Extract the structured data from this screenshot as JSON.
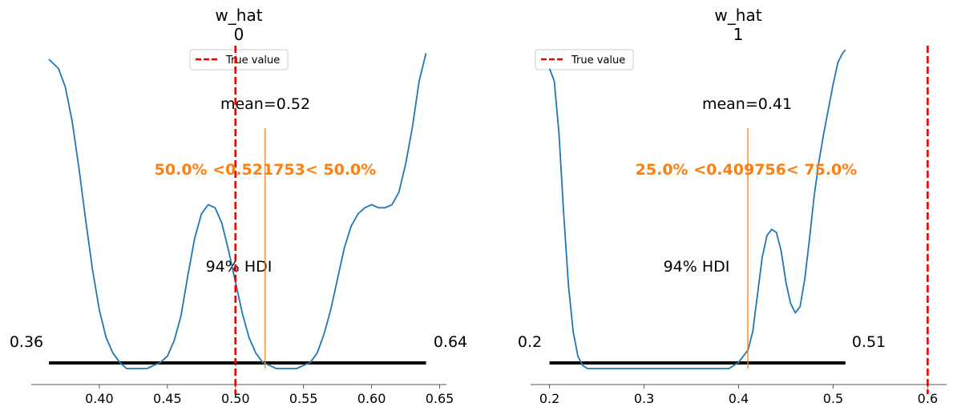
{
  "chart_data": [
    {
      "type": "density",
      "title_line1": "w_hat",
      "title_line2": "0",
      "xlim": [
        0.35,
        0.655
      ],
      "xticks": [
        0.4,
        0.45,
        0.5,
        0.55,
        0.6,
        0.65
      ],
      "xtick_labels": [
        "0.40",
        "0.45",
        "0.50",
        "0.55",
        "0.60",
        "0.65"
      ],
      "density": {
        "x": [
          0.363,
          0.37,
          0.375,
          0.38,
          0.385,
          0.39,
          0.395,
          0.4,
          0.405,
          0.41,
          0.415,
          0.42,
          0.425,
          0.43,
          0.435,
          0.44,
          0.445,
          0.45,
          0.455,
          0.46,
          0.465,
          0.47,
          0.475,
          0.48,
          0.485,
          0.49,
          0.495,
          0.5,
          0.505,
          0.51,
          0.515,
          0.52,
          0.525,
          0.53,
          0.535,
          0.54,
          0.545,
          0.55,
          0.555,
          0.56,
          0.565,
          0.57,
          0.575,
          0.58,
          0.585,
          0.59,
          0.595,
          0.6,
          0.605,
          0.61,
          0.615,
          0.62,
          0.625,
          0.63,
          0.635,
          0.64
        ],
        "y": [
          1.0,
          0.97,
          0.91,
          0.8,
          0.65,
          0.48,
          0.32,
          0.19,
          0.1,
          0.05,
          0.02,
          0.0,
          0.0,
          0.0,
          0.0,
          0.01,
          0.02,
          0.04,
          0.09,
          0.17,
          0.3,
          0.42,
          0.5,
          0.53,
          0.52,
          0.47,
          0.38,
          0.28,
          0.18,
          0.1,
          0.05,
          0.02,
          0.01,
          0.0,
          0.0,
          0.0,
          0.0,
          0.01,
          0.02,
          0.05,
          0.11,
          0.19,
          0.29,
          0.39,
          0.46,
          0.5,
          0.52,
          0.53,
          0.52,
          0.52,
          0.53,
          0.57,
          0.66,
          0.78,
          0.93,
          1.02
        ]
      },
      "hdi": {
        "label": "94% HDI",
        "low": 0.363,
        "high": 0.64,
        "low_label": "0.36",
        "high_label": "0.64"
      },
      "mean": {
        "value": 0.521753,
        "label": "mean=0.52"
      },
      "ratio_label": "50.0% <0.521753< 50.0%",
      "ref_value": 0.5,
      "legend": {
        "label": "True value",
        "position": "upper center"
      }
    },
    {
      "type": "density",
      "title_line1": "w_hat",
      "title_line2": "1",
      "xlim": [
        0.18,
        0.62
      ],
      "xticks": [
        0.2,
        0.3,
        0.4,
        0.5,
        0.6
      ],
      "xtick_labels": [
        "0.2",
        "0.3",
        "0.4",
        "0.5",
        "0.6"
      ],
      "density": {
        "x": [
          0.2,
          0.205,
          0.21,
          0.215,
          0.22,
          0.225,
          0.23,
          0.235,
          0.24,
          0.245,
          0.25,
          0.3,
          0.35,
          0.39,
          0.395,
          0.4,
          0.405,
          0.41,
          0.415,
          0.42,
          0.425,
          0.43,
          0.435,
          0.44,
          0.445,
          0.45,
          0.455,
          0.46,
          0.465,
          0.47,
          0.475,
          0.48,
          0.485,
          0.49,
          0.495,
          0.5,
          0.505,
          0.51,
          0.513
        ],
        "y": [
          0.97,
          0.93,
          0.76,
          0.5,
          0.27,
          0.12,
          0.04,
          0.01,
          0.0,
          0.0,
          0.0,
          0.0,
          0.0,
          0.0,
          0.01,
          0.02,
          0.04,
          0.06,
          0.12,
          0.24,
          0.36,
          0.43,
          0.45,
          0.44,
          0.38,
          0.28,
          0.21,
          0.18,
          0.2,
          0.29,
          0.42,
          0.56,
          0.67,
          0.76,
          0.84,
          0.92,
          0.99,
          1.02,
          1.03
        ]
      },
      "hdi": {
        "label": "94% HDI",
        "low": 0.2,
        "high": 0.513,
        "low_label": "0.2",
        "high_label": "0.51"
      },
      "mean": {
        "value": 0.409756,
        "label": "mean=0.41"
      },
      "ratio_label": "25.0% <0.409756< 75.0%",
      "ref_value": 0.6,
      "legend": {
        "label": "True value",
        "position": "upper left"
      }
    }
  ],
  "colors": {
    "density": "#1f77b4",
    "reference": "#ee0000",
    "mean_line": "#ff7f0e",
    "hdi": "#000000",
    "axis": "#555555"
  }
}
